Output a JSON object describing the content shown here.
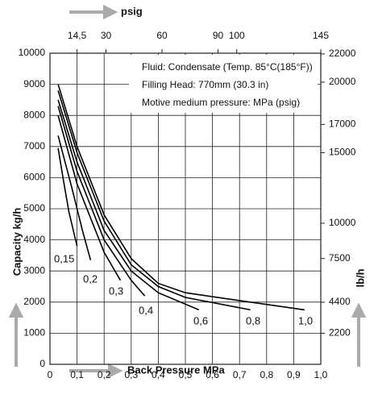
{
  "chart_data": {
    "type": "line",
    "title": "psig",
    "x_label": "Back Pressure MPa",
    "y_label": "Capacity kg/h",
    "y2_label": "lb/h",
    "annotations": [
      "Fluid: Condensate (Temp. 85°C(185°F))",
      "Filling Head: 770mm (30.3 in)",
      "Motive medium pressure: MPa (psig)"
    ],
    "xlim": [
      0,
      1.0
    ],
    "xticks": [
      0,
      {
        "value": 0.1,
        "label": "0,1"
      },
      {
        "value": 0.2,
        "label": "0,2"
      },
      {
        "value": 0.3,
        "label": "0,3"
      },
      {
        "value": 0.4,
        "label": "0,4"
      },
      {
        "value": 0.5,
        "label": "0,5"
      },
      {
        "value": 0.6,
        "label": "0,6"
      },
      {
        "value": 0.7,
        "label": "0,7"
      },
      {
        "value": 0.8,
        "label": "0,8"
      },
      {
        "value": 0.9,
        "label": "0,9"
      },
      {
        "value": 1.0,
        "label": "1,0"
      }
    ],
    "x2lim": [
      0,
      145
    ],
    "x2ticks": [
      {
        "value": 14.5,
        "label": "14,5"
      },
      30,
      60,
      90,
      100,
      145
    ],
    "ylim": [
      0,
      10000
    ],
    "yticks": [
      0,
      1000,
      2000,
      3000,
      4000,
      5000,
      6000,
      7000,
      8000,
      9000,
      10000
    ],
    "y2lim": [
      0,
      22050
    ],
    "y2ticks": [
      2200,
      4400,
      7500,
      10000,
      15000,
      17000,
      20000,
      22000
    ],
    "grid": true,
    "series": [
      {
        "name": "0,15",
        "color": "#000000",
        "x": [
          0.03,
          0.05,
          0.07,
          0.1
        ],
        "values": [
          6950,
          5900,
          4900,
          3800
        ]
      },
      {
        "name": "0,2",
        "color": "#000000",
        "x": [
          0.03,
          0.08,
          0.12,
          0.15
        ],
        "values": [
          7350,
          5700,
          4300,
          3350
        ]
      },
      {
        "name": "0,3",
        "color": "#000000",
        "x": [
          0.03,
          0.1,
          0.2,
          0.26
        ],
        "values": [
          8000,
          5800,
          3600,
          2700
        ]
      },
      {
        "name": "0,4",
        "color": "#000000",
        "x": [
          0.03,
          0.1,
          0.2,
          0.3,
          0.35
        ],
        "values": [
          8300,
          6200,
          4000,
          2700,
          2200
        ]
      },
      {
        "name": "0,6",
        "color": "#000000",
        "x": [
          0.03,
          0.1,
          0.2,
          0.3,
          0.4,
          0.55
        ],
        "values": [
          8500,
          6500,
          4300,
          3000,
          2300,
          1750
        ]
      },
      {
        "name": "0,8",
        "color": "#000000",
        "x": [
          0.03,
          0.1,
          0.2,
          0.3,
          0.4,
          0.5,
          0.74
        ],
        "values": [
          8800,
          6800,
          4600,
          3200,
          2500,
          2150,
          1750
        ]
      },
      {
        "name": "1,0",
        "color": "#000000",
        "x": [
          0.03,
          0.1,
          0.2,
          0.3,
          0.4,
          0.5,
          0.7,
          0.94
        ],
        "values": [
          9000,
          7000,
          4800,
          3400,
          2600,
          2300,
          2050,
          1750
        ]
      }
    ]
  }
}
